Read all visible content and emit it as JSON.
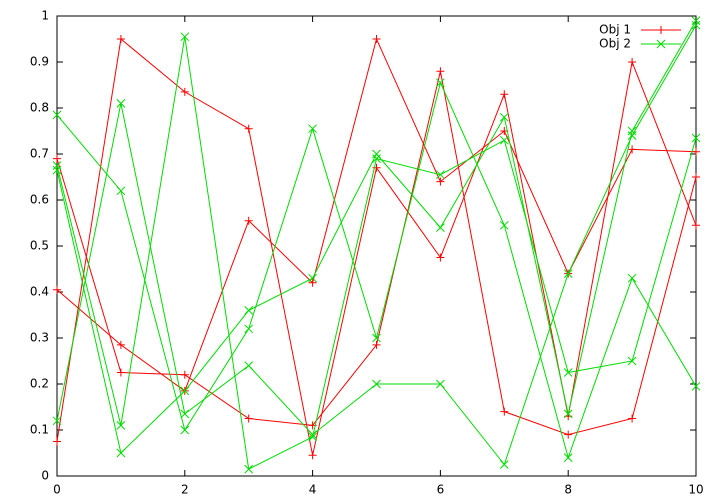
{
  "chart_data": {
    "type": "line",
    "x": [
      0,
      1,
      2,
      3,
      4,
      5,
      6,
      7,
      8,
      9,
      10
    ],
    "series": [
      {
        "name": "Obj 1",
        "color": "#ff0000",
        "marker": "+",
        "lines": [
          [
            0.075,
            0.95,
            0.835,
            0.755,
            0.045,
            0.67,
            0.475,
            0.83,
            0.13,
            0.9,
            0.545
          ],
          [
            0.405,
            0.285,
            0.185,
            0.555,
            0.42,
            0.95,
            0.64,
            0.75,
            0.44,
            0.71,
            0.705
          ],
          [
            0.69,
            0.225,
            0.22,
            0.125,
            0.11,
            0.285,
            0.88,
            0.14,
            0.09,
            0.125,
            0.65
          ]
        ]
      },
      {
        "name": "Obj 2",
        "color": "#00dd00",
        "marker": "x",
        "lines": [
          [
            0.785,
            0.62,
            0.1,
            0.32,
            0.755,
            0.3,
            0.855,
            0.545,
            0.04,
            0.43,
            0.195
          ],
          [
            0.665,
            0.05,
            0.185,
            0.36,
            0.43,
            0.7,
            0.54,
            0.78,
            0.135,
            0.75,
            0.99
          ],
          [
            0.675,
            0.11,
            0.955,
            0.015,
            0.085,
            0.69,
            0.655,
            0.73,
            0.225,
            0.25,
            0.735
          ],
          [
            0.12,
            0.81,
            0.135,
            0.24,
            0.09,
            0.2,
            0.2,
            0.025,
            0.44,
            0.74,
            0.98
          ]
        ]
      }
    ],
    "xlim": [
      0,
      10
    ],
    "xticks": [
      0,
      2,
      4,
      6,
      8,
      10
    ],
    "ylim": [
      0,
      1
    ],
    "yticks": [
      0,
      0.1,
      0.2,
      0.3,
      0.4,
      0.5,
      0.6,
      0.7,
      0.8,
      0.9,
      1
    ],
    "legend": "top-right",
    "grid": false
  }
}
